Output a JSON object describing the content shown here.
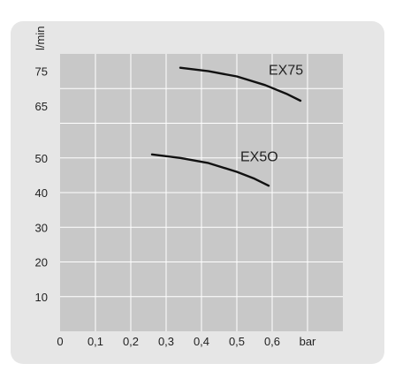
{
  "chart_data": {
    "type": "line",
    "ylabel": "l/min",
    "xlabel": "bar",
    "xlim": [
      0,
      0.8
    ],
    "ylim": [
      0,
      80
    ],
    "grid": true,
    "x_ticks": [
      {
        "value": 0,
        "label": "0"
      },
      {
        "value": 0.1,
        "label": "0,1"
      },
      {
        "value": 0.2,
        "label": "0,2"
      },
      {
        "value": 0.3,
        "label": "0,3"
      },
      {
        "value": 0.4,
        "label": "0,4"
      },
      {
        "value": 0.5,
        "label": "0,5"
      },
      {
        "value": 0.6,
        "label": "0,6"
      }
    ],
    "y_ticks": [
      {
        "value": 10,
        "label": "10"
      },
      {
        "value": 20,
        "label": "20"
      },
      {
        "value": 30,
        "label": "30"
      },
      {
        "value": 40,
        "label": "40"
      },
      {
        "value": 50,
        "label": "50"
      },
      {
        "value": 65,
        "label": "65"
      },
      {
        "value": 75,
        "label": "75"
      }
    ],
    "series": [
      {
        "name": "EX75",
        "points": [
          {
            "x": 0.34,
            "y": 76
          },
          {
            "x": 0.42,
            "y": 75
          },
          {
            "x": 0.5,
            "y": 73.5
          },
          {
            "x": 0.58,
            "y": 71
          },
          {
            "x": 0.64,
            "y": 68.5
          },
          {
            "x": 0.68,
            "y": 66.5
          }
        ]
      },
      {
        "name": "EX5O",
        "points": [
          {
            "x": 0.26,
            "y": 51
          },
          {
            "x": 0.34,
            "y": 50
          },
          {
            "x": 0.42,
            "y": 48.5
          },
          {
            "x": 0.5,
            "y": 46
          },
          {
            "x": 0.55,
            "y": 44
          },
          {
            "x": 0.59,
            "y": 42
          }
        ]
      }
    ],
    "colors": {
      "card": "#e6e6e6",
      "plot": "#c8c8c8",
      "grid": "#ffffff",
      "line": "#111111",
      "text": "#222222"
    }
  }
}
